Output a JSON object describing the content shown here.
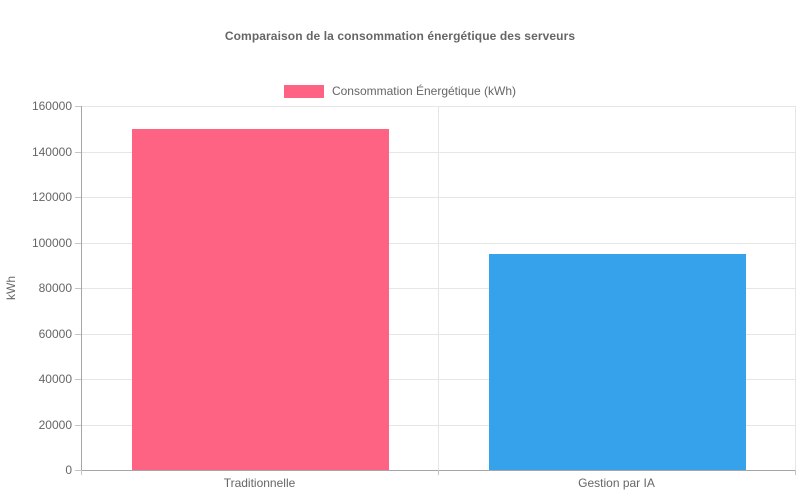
{
  "chart_data": {
    "type": "bar",
    "title": "Comparaison de la consommation énergétique des serveurs",
    "categories": [
      "Traditionnelle",
      "Gestion par IA"
    ],
    "series": [
      {
        "name": "Consommation Énergétique (kWh)",
        "values": [
          150000,
          95000
        ],
        "colors": [
          "#FF6384",
          "#36A2EB"
        ]
      }
    ],
    "xlabel": "",
    "ylabel": "kWh",
    "ylim": [
      0,
      160000
    ],
    "yticks": [
      0,
      20000,
      40000,
      60000,
      80000,
      100000,
      120000,
      140000,
      160000
    ],
    "grid": true,
    "legend_position": "top",
    "legend_swatch_color": "#FF6384",
    "bar_percentage_of_category": 0.72
  },
  "palette": {
    "background": "#ffffff",
    "axis_line": "#a6a6a6",
    "gridline": "#e6e6e6",
    "tick_mark": "#c4c4c4",
    "text": "#666666"
  }
}
